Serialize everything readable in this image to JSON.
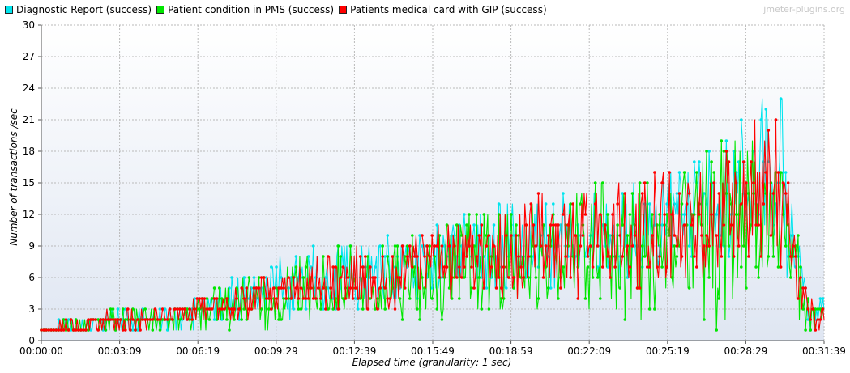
{
  "chart_data": {
    "type": "line",
    "watermark": "jmeter-plugins.org",
    "xlabel": "Elapsed time (granularity: 1 sec)",
    "ylabel": "Number of transactions /sec",
    "ylim": [
      0,
      30
    ],
    "yticks": [
      0,
      3,
      6,
      9,
      12,
      15,
      18,
      21,
      24,
      27,
      30
    ],
    "xlim_seconds": [
      0,
      1899
    ],
    "xtick_labels": [
      "00:00:00",
      "00:03:09",
      "00:06:19",
      "00:09:29",
      "00:12:39",
      "00:15:49",
      "00:18:59",
      "00:22:09",
      "00:25:19",
      "00:28:29",
      "00:31:39"
    ],
    "grid": true,
    "legend_position": "top-left",
    "series_note": "dense per-second oscillating series; summary points capture the trend band (low/high per minute)",
    "series": [
      {
        "name": "Diagnostic Report (success)",
        "color": "#00e5ee",
        "x": [
          "00:00:00",
          "00:01:00",
          "00:02:00",
          "00:03:00",
          "00:04:00",
          "00:05:00",
          "00:06:00",
          "00:07:00",
          "00:08:00",
          "00:09:00",
          "00:10:00",
          "00:11:00",
          "00:12:00",
          "00:13:00",
          "00:14:00",
          "00:15:00",
          "00:16:00",
          "00:17:00",
          "00:18:00",
          "00:19:00",
          "00:20:00",
          "00:21:00",
          "00:22:00",
          "00:23:00",
          "00:24:00",
          "00:25:00",
          "00:26:00",
          "00:27:00",
          "00:28:00",
          "00:29:00",
          "00:30:00",
          "00:31:00"
        ],
        "low": [
          1,
          1,
          1,
          1,
          1,
          1,
          1,
          2,
          2,
          2,
          2,
          3,
          3,
          3,
          3,
          4,
          4,
          4,
          4,
          5,
          5,
          5,
          6,
          6,
          6,
          6,
          7,
          8,
          8,
          8,
          6,
          1
        ],
        "high": [
          1,
          2,
          2,
          3,
          3,
          3,
          4,
          5,
          6,
          7,
          8,
          9,
          9,
          9,
          10,
          11,
          11,
          12,
          13,
          13,
          13,
          14,
          14,
          14,
          15,
          16,
          17,
          18,
          21,
          24,
          23,
          4
        ]
      },
      {
        "name": "Patient condition in PMS (success)",
        "color": "#00e600",
        "x": [
          "00:00:00",
          "00:01:00",
          "00:02:00",
          "00:03:00",
          "00:04:00",
          "00:05:00",
          "00:06:00",
          "00:07:00",
          "00:08:00",
          "00:09:00",
          "00:10:00",
          "00:11:00",
          "00:12:00",
          "00:13:00",
          "00:14:00",
          "00:15:00",
          "00:16:00",
          "00:17:00",
          "00:18:00",
          "00:19:00",
          "00:20:00",
          "00:21:00",
          "00:22:00",
          "00:23:00",
          "00:24:00",
          "00:25:00",
          "00:26:00",
          "00:27:00",
          "00:28:00",
          "00:29:00",
          "00:30:00",
          "00:31:00"
        ],
        "low": [
          1,
          1,
          1,
          1,
          1,
          1,
          1,
          1,
          1,
          1,
          1,
          1,
          2,
          2,
          2,
          2,
          2,
          2,
          2,
          3,
          3,
          3,
          1,
          1,
          1,
          1,
          1,
          1,
          2,
          4,
          4,
          1
        ],
        "high": [
          1,
          2,
          2,
          3,
          3,
          3,
          4,
          5,
          6,
          7,
          8,
          8,
          9,
          9,
          10,
          10,
          11,
          12,
          13,
          13,
          14,
          14,
          15,
          16,
          16,
          17,
          18,
          19,
          20,
          21,
          19,
          4
        ]
      },
      {
        "name": "Patients medical card with GIP (success)",
        "color": "#ff0000",
        "x": [
          "00:00:00",
          "00:01:00",
          "00:02:00",
          "00:03:00",
          "00:04:00",
          "00:05:00",
          "00:06:00",
          "00:07:00",
          "00:08:00",
          "00:09:00",
          "00:10:00",
          "00:11:00",
          "00:12:00",
          "00:13:00",
          "00:14:00",
          "00:15:00",
          "00:16:00",
          "00:17:00",
          "00:18:00",
          "00:19:00",
          "00:20:00",
          "00:21:00",
          "00:22:00",
          "00:23:00",
          "00:24:00",
          "00:25:00",
          "00:26:00",
          "00:27:00",
          "00:28:00",
          "00:29:00",
          "00:30:00",
          "00:31:00"
        ],
        "low": [
          1,
          1,
          1,
          1,
          1,
          2,
          2,
          2,
          2,
          2,
          3,
          3,
          3,
          3,
          3,
          4,
          4,
          4,
          4,
          4,
          4,
          4,
          4,
          5,
          5,
          5,
          6,
          6,
          7,
          7,
          6,
          1
        ],
        "high": [
          1,
          2,
          2,
          3,
          3,
          3,
          4,
          4,
          5,
          6,
          7,
          8,
          8,
          9,
          9,
          10,
          11,
          12,
          12,
          13,
          14,
          14,
          14,
          15,
          15,
          16,
          16,
          17,
          18,
          24,
          20,
          4
        ]
      }
    ]
  }
}
